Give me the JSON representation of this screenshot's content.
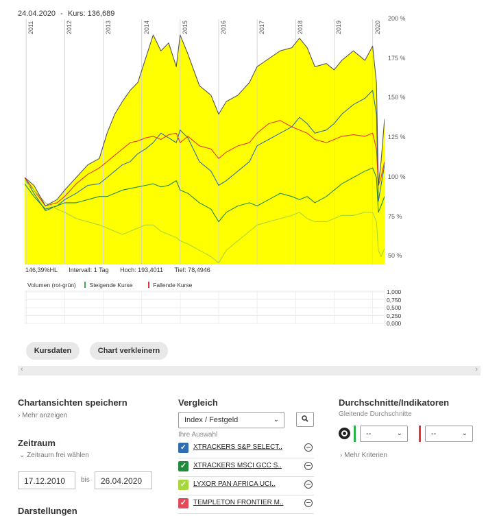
{
  "header": {
    "date": "24.04.2020",
    "separator": "-",
    "kurs_label": "Kurs:",
    "kurs_value": "136,689"
  },
  "chart_data": [
    {
      "type": "area",
      "years": [
        "2011",
        "2012",
        "2013",
        "2014",
        "2015",
        "2016",
        "2017",
        "2018",
        "2019",
        "2020"
      ],
      "y_ticks": [
        "200 %",
        "175 %",
        "150 %",
        "125 %",
        "100 %",
        "75 %",
        "50 %"
      ],
      "ylim": [
        45,
        200
      ],
      "x": [
        2010.96,
        2011.2,
        2011.5,
        2011.8,
        2012.0,
        2012.3,
        2012.6,
        2012.9,
        2013.1,
        2013.3,
        2013.5,
        2013.7,
        2013.9,
        2014.1,
        2014.3,
        2014.5,
        2014.7,
        2014.9,
        2015.0,
        2015.2,
        2015.5,
        2015.8,
        2016.0,
        2016.2,
        2016.5,
        2016.8,
        2017.0,
        2017.3,
        2017.6,
        2017.9,
        2018.1,
        2018.3,
        2018.5,
        2018.8,
        2019.0,
        2019.2,
        2019.5,
        2019.8,
        2020.0,
        2020.1,
        2020.15,
        2020.22,
        2020.31
      ],
      "series": [
        {
          "color": "#ffff00",
          "stroke": "#555555",
          "values": [
            100,
            95,
            82,
            86,
            92,
            100,
            108,
            112,
            128,
            140,
            148,
            155,
            160,
            175,
            190,
            180,
            185,
            170,
            190,
            178,
            158,
            152,
            140,
            148,
            152,
            160,
            170,
            175,
            180,
            182,
            188,
            182,
            170,
            172,
            168,
            174,
            180,
            174,
            183,
            160,
            95,
            110,
            137
          ]
        },
        {
          "color": "#2f6db0",
          "values": [
            100,
            90,
            79,
            82,
            86,
            90,
            95,
            96,
            100,
            104,
            108,
            110,
            115,
            118,
            122,
            128,
            125,
            122,
            130,
            125,
            110,
            104,
            95,
            98,
            104,
            110,
            120,
            124,
            128,
            132,
            138,
            134,
            128,
            130,
            134,
            140,
            146,
            150,
            155,
            140,
            85,
            95,
            108
          ]
        },
        {
          "color": "#e33b2a",
          "values": [
            100,
            92,
            82,
            84,
            88,
            96,
            102,
            106,
            110,
            114,
            118,
            122,
            123,
            125,
            126,
            124,
            127,
            128,
            122,
            126,
            120,
            118,
            112,
            116,
            120,
            122,
            128,
            134,
            136,
            132,
            130,
            128,
            124,
            122,
            124,
            126,
            127,
            126,
            128,
            118,
            95,
            100,
            110
          ]
        },
        {
          "color": "#228b3c",
          "values": [
            96,
            88,
            80,
            82,
            84,
            84,
            86,
            88,
            88,
            90,
            92,
            93,
            94,
            95,
            96,
            94,
            95,
            98,
            92,
            90,
            84,
            80,
            72,
            78,
            82,
            84,
            82,
            86,
            90,
            88,
            86,
            88,
            84,
            88,
            92,
            96,
            100,
            104,
            106,
            100,
            78,
            82,
            88
          ]
        },
        {
          "color": "#a6d73c",
          "values": [
            98,
            92,
            84,
            80,
            78,
            74,
            72,
            70,
            68,
            66,
            64,
            66,
            68,
            70,
            70,
            66,
            64,
            62,
            60,
            58,
            54,
            50,
            46,
            54,
            60,
            66,
            70,
            72,
            74,
            76,
            78,
            74,
            72,
            72,
            74,
            76,
            76,
            78,
            78,
            72,
            54,
            50,
            55
          ]
        }
      ]
    },
    {
      "type": "bar",
      "title": "Volumen (rot-grün)",
      "y_ticks": [
        "1,000",
        "0,750",
        "0,500",
        "0,250",
        "0,000"
      ],
      "values": []
    }
  ],
  "info": {
    "hl": "146,39%HL",
    "intervall": "Intervall: 1 Tag",
    "hoch": "Hoch: 193,4011",
    "tief": "Tief: 78,4946"
  },
  "volume": {
    "label": "Volumen (rot-grün)",
    "rising": "Steigende Kurse",
    "falling": "Fallende Kurse"
  },
  "buttons": {
    "kursdaten": "Kursdaten",
    "verkleinern": "Chart verkleinern"
  },
  "scroll": {
    "left": "‹",
    "right": "›"
  },
  "col1": {
    "save_title": "Chartansichten speichern",
    "more": "Mehr anzeigen",
    "zeitraum_title": "Zeitraum",
    "zeitraum_link": "Zeitraum frei wählen",
    "from": "17.12.2010",
    "bis": "bis",
    "to": "26.04.2020",
    "darstellungen": "Darstellungen"
  },
  "col2": {
    "title": "Vergleich",
    "select": "Index / Festgeld",
    "ihre_auswahl": "Ihre Auswahl",
    "items": [
      {
        "label": "XTRACKERS S&P SELECT..",
        "color": "#2f6db0"
      },
      {
        "label": "XTRACKERS MSCI GCC S..",
        "color": "#228b3c"
      },
      {
        "label": "LYXOR PAN AFRICA UCI..",
        "color": "#a6d73c"
      },
      {
        "label": "TEMPLETON FRONTIER M..",
        "color": "#e34b5a"
      }
    ]
  },
  "col3": {
    "title": "Durchschnitte/Indikatoren",
    "sub": "Gleitende Durchschnitte",
    "select1": "--",
    "select2": "--",
    "more": "Mehr Kriterien"
  }
}
